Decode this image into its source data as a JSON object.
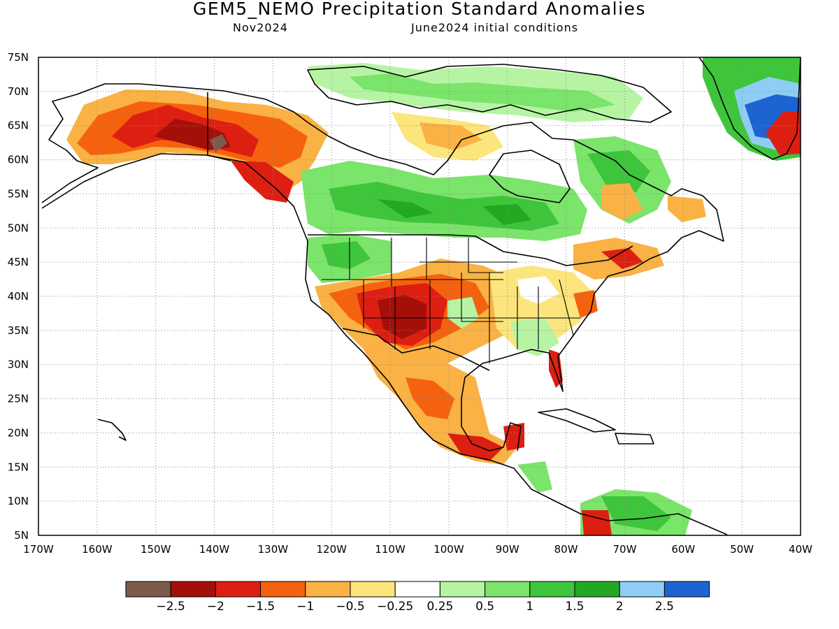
{
  "header": {
    "title": "GEM5_NEMO Precipitation Standard Anomalies",
    "valid_month": "Nov2024",
    "initial_conditions": "June2024 initial conditions"
  },
  "map": {
    "lon_range": [
      -170,
      -40
    ],
    "lat_range": [
      5,
      75
    ],
    "lon_ticks": [
      "170W",
      "160W",
      "150W",
      "140W",
      "130W",
      "120W",
      "110W",
      "100W",
      "90W",
      "80W",
      "70W",
      "60W",
      "50W",
      "40W"
    ],
    "lat_ticks": [
      "5N",
      "10N",
      "15N",
      "20N",
      "25N",
      "30N",
      "35N",
      "40N",
      "45N",
      "50N",
      "55N",
      "60N",
      "65N",
      "70N",
      "75N"
    ],
    "grid": "dotted"
  },
  "colorbar": {
    "colors": [
      "#7d5a4a",
      "#a50f0a",
      "#dd1f12",
      "#f5620f",
      "#f9b243",
      "#fce57c",
      "#ffffff",
      "#b6f4a4",
      "#7be46a",
      "#3fc53c",
      "#23a823",
      "#8fcdf5",
      "#1e63d2"
    ],
    "labels": [
      "-2.5",
      "-2",
      "-1.5",
      "-1",
      "-0.5",
      "-0.25",
      "0.25",
      "0.5",
      "1",
      "1.5",
      "2",
      "2.5"
    ]
  }
}
